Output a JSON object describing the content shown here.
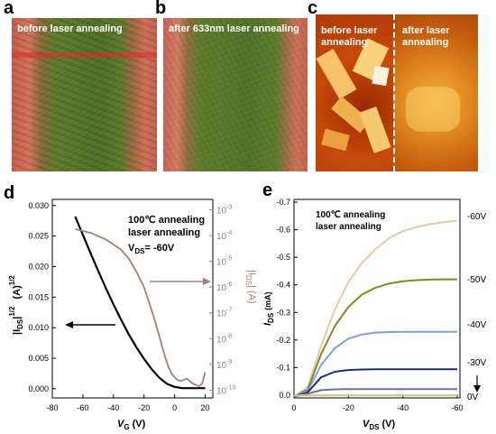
{
  "panels": {
    "a": {
      "letter": "a",
      "label": "before laser annealing"
    },
    "b": {
      "letter": "b",
      "label": "after 633nm laser annealing"
    },
    "c": {
      "letter": "c",
      "label_left": "before laser annealing",
      "label_right": "after laser annealing"
    },
    "d": {
      "letter": "d"
    },
    "e": {
      "letter": "e"
    }
  },
  "chart_data": [
    {
      "type": "line",
      "panel": "d",
      "annotation_line1": "100℃ annealing",
      "annotation_line2": "laser annealing",
      "annotation_line3": "V",
      "annotation_line3_sub": "DS",
      "annotation_line3_tail": "= -60V",
      "xlabel": "V",
      "xlabel_sub": "G",
      "xlabel_unit": "(V)",
      "ylabel_left": "|I",
      "ylabel_left_sub": "DS",
      "ylabel_left_tail": "|",
      "ylabel_left_sup": "1/2",
      "ylabel_left_unit": "(A)",
      "ylabel_left_unit_sup": "1/2",
      "ylabel_right": "|I",
      "ylabel_right_sub": "DS",
      "ylabel_right_tail": "| (A)",
      "x_ticks": [
        "-80",
        "-60",
        "-40",
        "-20",
        "0",
        "20"
      ],
      "x_tick_values": [
        -80,
        -60,
        -40,
        -20,
        0,
        20
      ],
      "y_left_ticks": [
        "0.000",
        "0.005",
        "0.010",
        "0.015",
        "0.020",
        "0.025",
        "0.030"
      ],
      "y_left_tick_values": [
        0,
        0.005,
        0.01,
        0.015,
        0.02,
        0.025,
        0.03
      ],
      "y_right_ticks": [
        "10",
        "10",
        "10",
        "10",
        "10",
        "10",
        "10",
        "10"
      ],
      "y_right_tick_exps": [
        "-3",
        "-4",
        "-5",
        "-6",
        "-7",
        "-8",
        "-9",
        "-10"
      ],
      "y_right_exp_values": [
        -3,
        -4,
        -5,
        -6,
        -7,
        -8,
        -9,
        -10
      ],
      "xlim": [
        -80,
        25
      ],
      "ylim_left": [
        -0.0015,
        0.031
      ],
      "ylim_right_log": [
        -10.3,
        -2.6
      ],
      "series": [
        {
          "axis": "left",
          "color": "#000000",
          "x": [
            -65,
            -60,
            -55,
            -50,
            -45,
            -40,
            -35,
            -30,
            -25,
            -20,
            -15,
            -10,
            -5,
            0,
            5,
            10,
            15,
            20
          ],
          "y": [
            0.0282,
            0.0252,
            0.0222,
            0.0193,
            0.0165,
            0.0138,
            0.0113,
            0.0089,
            0.0068,
            0.0049,
            0.0032,
            0.0018,
            0.0008,
            0.0003,
            0.0001,
            0.0001,
            0.0001,
            0.0001
          ]
        },
        {
          "axis": "right",
          "color": "#a08078",
          "x": [
            -65,
            -55,
            -45,
            -35,
            -30,
            -25,
            -20,
            -15,
            -10,
            -8,
            -6,
            -4,
            -2,
            0,
            2,
            4,
            8,
            12,
            16,
            18,
            20
          ],
          "y": [
            -3.75,
            -3.9,
            -4.15,
            -4.55,
            -4.9,
            -5.4,
            -6.0,
            -6.9,
            -7.9,
            -8.35,
            -8.75,
            -9.1,
            -9.35,
            -9.5,
            -9.6,
            -9.65,
            -9.55,
            -9.75,
            -9.85,
            -9.75,
            -9.3
          ]
        }
      ]
    },
    {
      "type": "line",
      "panel": "e",
      "annotation_line1": "100℃ annealing",
      "annotation_line2": "laser annealing",
      "xlabel": "V",
      "xlabel_sub": "DS",
      "xlabel_unit": "(V)",
      "ylabel": "I",
      "ylabel_sub": "DS",
      "ylabel_unit": "(mA)",
      "x_ticks": [
        "0",
        "-20",
        "-40",
        "-60"
      ],
      "x_tick_values": [
        0,
        -20,
        -40,
        -60
      ],
      "y_ticks": [
        "0.0",
        "-0.1",
        "-0.2",
        "-0.3",
        "-0.4",
        "-0.5",
        "-0.6",
        "-0.7"
      ],
      "y_tick_values": [
        0,
        -0.1,
        -0.2,
        -0.3,
        -0.4,
        -0.5,
        -0.6,
        -0.7
      ],
      "xlim": [
        0,
        -61
      ],
      "ylim": [
        0.01,
        -0.71
      ],
      "series": [
        {
          "name": "-60V",
          "color": "#e8c9a0",
          "x": [
            0,
            -5,
            -10,
            -15,
            -20,
            -25,
            -30,
            -35,
            -40,
            -45,
            -50,
            -55,
            -60
          ],
          "y": [
            0.005,
            -0.03,
            -0.18,
            -0.31,
            -0.41,
            -0.48,
            -0.53,
            -0.57,
            -0.595,
            -0.61,
            -0.62,
            -0.628,
            -0.632
          ]
        },
        {
          "name": "-50V",
          "color": "#7f8c1d",
          "x": [
            0,
            -5,
            -10,
            -15,
            -20,
            -25,
            -30,
            -35,
            -40,
            -45,
            -50,
            -55,
            -60
          ],
          "y": [
            0.005,
            -0.02,
            -0.15,
            -0.25,
            -0.32,
            -0.365,
            -0.39,
            -0.405,
            -0.413,
            -0.417,
            -0.419,
            -0.42,
            -0.42
          ]
        },
        {
          "name": "-40V",
          "color": "#7f9fdd",
          "x": [
            0,
            -5,
            -10,
            -15,
            -20,
            -25,
            -30,
            -35,
            -40,
            -45,
            -50,
            -55,
            -60
          ],
          "y": [
            0.005,
            -0.015,
            -0.11,
            -0.17,
            -0.205,
            -0.22,
            -0.227,
            -0.229,
            -0.23,
            -0.23,
            -0.23,
            -0.23,
            -0.23
          ]
        },
        {
          "name": "-30V",
          "color": "#1c2c7e",
          "x": [
            0,
            -5,
            -10,
            -15,
            -20,
            -25,
            -30,
            -35,
            -40,
            -45,
            -50,
            -55,
            -60
          ],
          "y": [
            0.005,
            -0.01,
            -0.065,
            -0.085,
            -0.091,
            -0.093,
            -0.094,
            -0.094,
            -0.094,
            -0.094,
            -0.094,
            -0.094,
            -0.094
          ]
        },
        {
          "name": "",
          "color": "#6a6fb0",
          "x": [
            0,
            -5,
            -10,
            -15,
            -20,
            -30,
            -40,
            -50,
            -60
          ],
          "y": [
            0.005,
            -0.005,
            -0.018,
            -0.021,
            -0.022,
            -0.022,
            -0.022,
            -0.022,
            -0.022
          ]
        },
        {
          "name": "0V",
          "color": "#c8c878",
          "x": [
            0,
            -10,
            -20,
            -30,
            -40,
            -50,
            -60
          ],
          "y": [
            0.001,
            0.001,
            0.001,
            0.001,
            0.001,
            0.001,
            0.001
          ]
        }
      ],
      "right_labels": [
        "-60V",
        "-50V",
        "-40V",
        "-30V",
        "0V"
      ]
    }
  ]
}
